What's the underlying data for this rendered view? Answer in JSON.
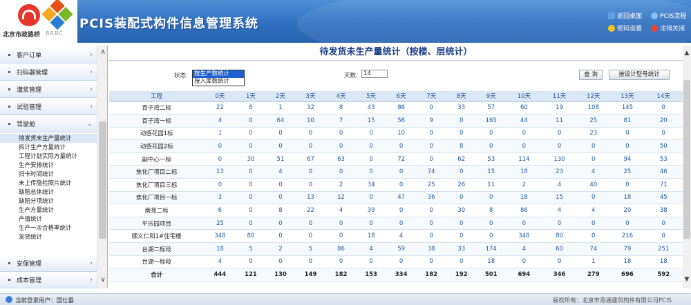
{
  "header": {
    "logo_caption": "北京市政路桥",
    "logo2_caption": "BRBC",
    "app_title": "PCIS装配式构件信息管理系统",
    "links": [
      {
        "label": "返回桌面",
        "icon": "desktop-icon",
        "color": "#5fa2e8"
      },
      {
        "label": "PCIS流程",
        "icon": "flow-icon",
        "color": "#7fc1ff"
      },
      {
        "label": "密码设置",
        "icon": "key-icon",
        "color": "#f5c518"
      },
      {
        "label": "注销关闭",
        "icon": "power-icon",
        "color": "#e8442f"
      }
    ]
  },
  "sidebar": {
    "items": [
      {
        "label": "客户订单",
        "expanded": false
      },
      {
        "label": "扫码器管理",
        "expanded": false
      },
      {
        "label": "灌浆管理",
        "expanded": false
      },
      {
        "label": "试验管理",
        "expanded": false
      },
      {
        "label": "驾驶舱",
        "expanded": true
      },
      {
        "label": "安保管理",
        "expanded": false
      },
      {
        "label": "成本管理",
        "expanded": false
      }
    ],
    "subitems": [
      "待发货未生产量统计",
      "拆计生产方量统计",
      "工程计划实际方量统计",
      "生产安排统计",
      "扫卡时间统计",
      "未上传隐检照片统计",
      "缺陷总体统计",
      "缺陷分项统计",
      "生产方量统计",
      "产值统计",
      "生产一次合格率统计",
      "发货统计"
    ],
    "active_subitem": 0
  },
  "report": {
    "title": "待发货未生产量统计（按楼、层统计）",
    "status_label": "状态:",
    "status_options": [
      "按生产数统计",
      "按入库数统计"
    ],
    "status_selected": 0,
    "days_label": "天数:",
    "days_value": "14",
    "query_button": "查 询",
    "design_button": "按设计型号统计"
  },
  "table": {
    "columns": [
      "工程",
      "0天",
      "1天",
      "2天",
      "3天",
      "4天",
      "5天",
      "6天",
      "7天",
      "8天",
      "9天",
      "10天",
      "11天",
      "12天",
      "13天",
      "14天"
    ],
    "rows": [
      [
        "百子湾二标",
        "22",
        "6",
        "1",
        "32",
        "8",
        "43",
        "86",
        "0",
        "33",
        "57",
        "60",
        "19",
        "108",
        "145",
        "0"
      ],
      [
        "百子湾一标",
        "4",
        "0",
        "64",
        "10",
        "7",
        "15",
        "56",
        "9",
        "0",
        "165",
        "44",
        "11",
        "25",
        "81",
        "20"
      ],
      [
        "动感花园1标",
        "1",
        "0",
        "0",
        "0",
        "0",
        "0",
        "10",
        "0",
        "0",
        "0",
        "0",
        "0",
        "23",
        "0",
        "0"
      ],
      [
        "动感花园2标",
        "0",
        "0",
        "0",
        "0",
        "0",
        "0",
        "0",
        "0",
        "8",
        "0",
        "0",
        "0",
        "0",
        "0",
        "50"
      ],
      [
        "副中心一标",
        "0",
        "30",
        "51",
        "67",
        "63",
        "0",
        "72",
        "0",
        "62",
        "53",
        "114",
        "130",
        "0",
        "94",
        "53"
      ],
      [
        "焦化厂项目二标",
        "13",
        "0",
        "4",
        "0",
        "0",
        "0",
        "0",
        "74",
        "0",
        "15",
        "18",
        "23",
        "4",
        "25",
        "46"
      ],
      [
        "焦化厂项目三标",
        "0",
        "0",
        "0",
        "0",
        "2",
        "34",
        "0",
        "25",
        "26",
        "11",
        "2",
        "4",
        "40",
        "0",
        "71"
      ],
      [
        "焦化厂项目一标",
        "3",
        "0",
        "0",
        "13",
        "12",
        "0",
        "47",
        "36",
        "0",
        "0",
        "18",
        "15",
        "0",
        "18",
        "45"
      ],
      [
        "南苑二标",
        "6",
        "0",
        "8",
        "22",
        "4",
        "39",
        "0",
        "0",
        "30",
        "8",
        "86",
        "4",
        "4",
        "20",
        "38"
      ],
      [
        "平乐园项目",
        "25",
        "0",
        "0",
        "0",
        "0",
        "0",
        "0",
        "0",
        "0",
        "0",
        "0",
        "0",
        "0",
        "0",
        "0"
      ],
      [
        "顺义仁和1#住宅楼",
        "348",
        "80",
        "0",
        "0",
        "0",
        "18",
        "4",
        "0",
        "0",
        "0",
        "348",
        "80",
        "0",
        "216",
        "0"
      ],
      [
        "台湖二标段",
        "18",
        "5",
        "2",
        "5",
        "86",
        "4",
        "59",
        "38",
        "33",
        "174",
        "4",
        "60",
        "74",
        "79",
        "251"
      ],
      [
        "台湖一标段",
        "4",
        "0",
        "0",
        "0",
        "0",
        "0",
        "0",
        "0",
        "0",
        "18",
        "0",
        "0",
        "1",
        "18",
        "18"
      ]
    ],
    "total": [
      "合计",
      "444",
      "121",
      "130",
      "149",
      "182",
      "153",
      "334",
      "182",
      "192",
      "501",
      "694",
      "346",
      "279",
      "696",
      "592"
    ]
  },
  "status_bar": {
    "user_label": "当前登录用户：国仕蕃",
    "copyright": "版权所有：北京市燕通建筑构件有限公司PCIS"
  }
}
